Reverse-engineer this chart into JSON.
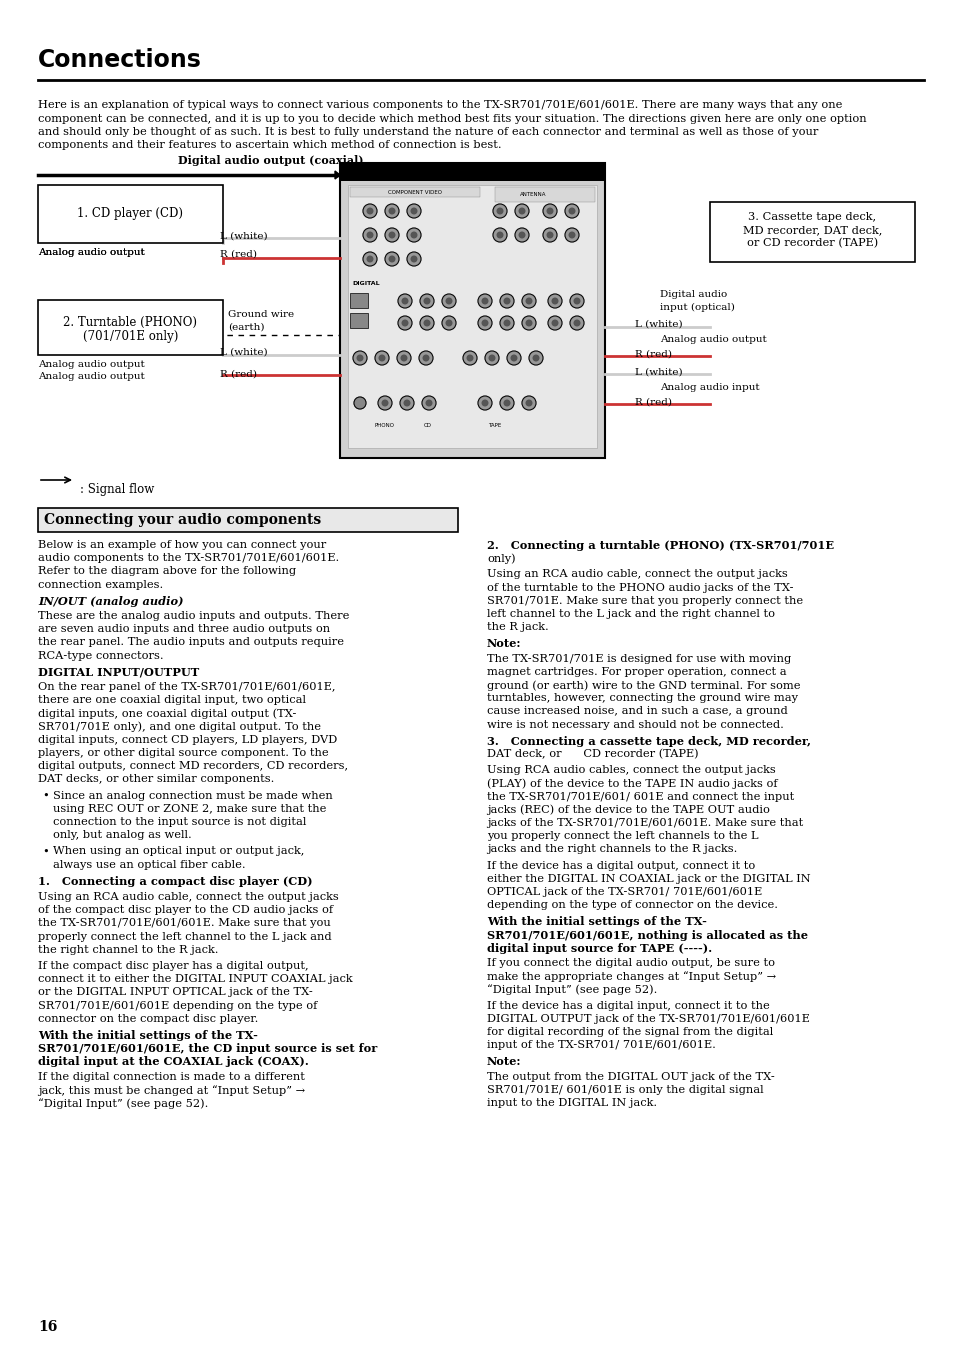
{
  "title": "Connections",
  "page_number": "16",
  "intro_text_lines": [
    "Here is an explanation of typical ways to connect various components to the TX-SR701/701E/601/601E. There are many ways that any one",
    "component can be connected, and it is up to you to decide which method best fits your situation. The directions given here are only one option",
    "and should only be thought of as such. It is best to fully understand the nature of each connector and terminal as well as those of your",
    "components and their features to ascertain which method of connection is best."
  ],
  "section_title": "Connecting your audio components",
  "left_col": [
    {
      "text": "Below is an example of how you can connect your audio components to the TX-SR701/701E/601/601E. Refer to the diagram above for the following connection examples.",
      "style": "normal",
      "wrap": 52
    },
    {
      "text": "IN/OUT (analog audio)",
      "style": "bold_italic"
    },
    {
      "text": "These are the analog audio inputs and outputs. There are seven audio inputs and three audio outputs on the rear panel. The audio inputs and outputs require RCA-type connectors.",
      "style": "normal",
      "wrap": 52
    },
    {
      "text": "DIGITAL INPUT/OUTPUT",
      "style": "bold"
    },
    {
      "text": "On the rear panel of the TX-SR701/701E/601/601E, there are one coaxial digital input, two optical digital inputs, one coaxial digital output (TX-SR701/701E only), and one digital output. To the digital inputs, connect CD players, LD players, DVD players, or other digital source component. To the digital outputs, connect MD recorders, CD recorders, DAT decks, or other similar components.",
      "style": "normal",
      "wrap": 52
    },
    {
      "text": "Since an analog connection must be made when using REC OUT or ZONE 2, make sure that the connection to the input source is not digital only, but analog as well.",
      "style": "bullet",
      "wrap": 49
    },
    {
      "text": "When using an optical input or output jack, always use an optical fiber cable.",
      "style": "bullet",
      "wrap": 49
    },
    {
      "text": "1.   Connecting a compact disc player (CD)",
      "style": "numbered_bold"
    },
    {
      "text": "Using an RCA audio cable, connect the output jacks of the compact disc player to the CD audio jacks of the TX-SR701/701E/601/601E. Make sure that you properly connect the left channel to the L jack and the right channel to the R jack.",
      "style": "normal",
      "wrap": 52
    },
    {
      "text": "If the compact disc player has a digital output, connect it to either the DIGITAL INPUT COAXIAL jack or the DIGITAL INPUT OPTICAL jack of the TX-SR701/701E/601/601E depending on the type of connector on the compact disc player.",
      "style": "normal",
      "wrap": 52
    },
    {
      "text": "With the initial settings of the TX-SR701/701E/601/601E, the CD input source is set for digital input at the COAXIAL jack (COAX).",
      "style": "bold",
      "wrap": 52
    },
    {
      "text": "If the digital connection is made to a different jack, this must be changed at “Input Setup” → “Digital Input” (see page 52).",
      "style": "normal",
      "wrap": 52
    }
  ],
  "right_col": [
    {
      "text": "2.   Connecting a turntable (PHONO) (TX-SR701/701E only)",
      "style": "numbered_bold"
    },
    {
      "text": "Using an RCA audio cable, connect the output jacks of the turntable to the PHONO audio jacks of the TX-SR701/701E. Make sure that you properly connect the left channel to the L jack and the right channel to the R jack.",
      "style": "normal",
      "wrap": 52
    },
    {
      "text": "Note:",
      "style": "bold"
    },
    {
      "text": "The TX-SR701/701E is designed for use with moving magnet cartridges. For proper operation, connect a ground (or earth) wire to the GND terminal. For some turntables, however, connecting the ground wire may cause increased noise, and in such a case, a ground wire is not necessary and should not be connected.",
      "style": "normal",
      "wrap": 52
    },
    {
      "text": "3.   Connecting a cassette tape deck, MD recorder, DAT deck, or      CD recorder (TAPE)",
      "style": "numbered_bold"
    },
    {
      "text": "Using RCA audio cables, connect the output jacks (PLAY) of the device to the TAPE IN audio jacks of the TX-SR701/701E/601/ 601E and connect the input jacks (REC) of the device to the TAPE OUT audio jacks of the TX-SR701/701E/601/601E. Make sure that you properly connect the left channels to the L jacks and the right channels to the R jacks.",
      "style": "normal",
      "wrap": 52
    },
    {
      "text": "If the device has a digital output, connect it to either the DIGITAL IN COAXIAL jack or the DIGITAL IN OPTICAL jack of the TX-SR701/ 701E/601/601E depending on the type of connector on the device.",
      "style": "normal",
      "wrap": 52
    },
    {
      "text": "With the initial settings of the TX-SR701/701E/601/601E, nothing is allocated as the digital input source for TAPE (----).",
      "style": "bold",
      "wrap": 52
    },
    {
      "text": "If you connect the digital audio output, be sure to make the appropriate changes at “Input Setup” → “Digital Input” (see page 52).",
      "style": "normal",
      "wrap": 52
    },
    {
      "text": "If the device has a digital input, connect it to the DIGITAL OUTPUT jack of the TX-SR701/701E/601/601E for digital recording of the signal from the digital input of the TX-SR701/ 701E/601/601E.",
      "style": "normal",
      "wrap": 52
    },
    {
      "text": "Note:",
      "style": "bold"
    },
    {
      "text": "The output from the DIGITAL OUT jack of the TX-SR701/701E/ 601/601E is only the digital signal input to the DIGITAL IN jack.",
      "style": "normal",
      "wrap": 52
    }
  ]
}
